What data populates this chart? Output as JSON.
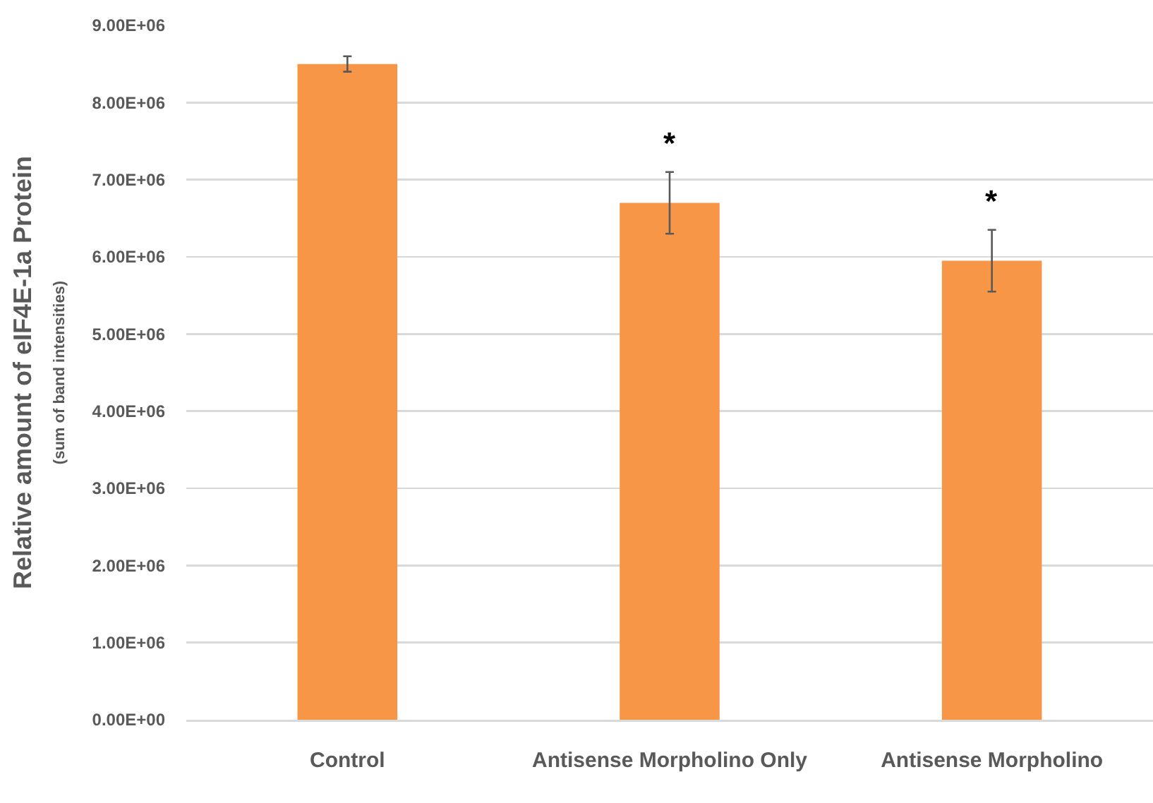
{
  "chart_data": {
    "type": "bar",
    "ylabel": "Relative amount of eIF4E-1a Protein\n(sum of band intensities)",
    "categories": [
      "Control",
      "Antisense Morpholino Only",
      "Antisense Morpholino"
    ],
    "values": [
      8500000,
      6700000,
      5950000
    ],
    "errors": [
      100000,
      400000,
      400000
    ],
    "color": "#f79646",
    "ylim": [
      0,
      9000000
    ],
    "yticks": [
      {
        "value": 0,
        "label": "0.00E+00"
      },
      {
        "value": 1000000,
        "label": "1.00E+06"
      },
      {
        "value": 2000000,
        "label": "2.00E+06"
      },
      {
        "value": 3000000,
        "label": "3.00E+06"
      },
      {
        "value": 4000000,
        "label": "4.00E+06"
      },
      {
        "value": 5000000,
        "label": "5.00E+06"
      },
      {
        "value": 6000000,
        "label": "6.00E+06"
      },
      {
        "value": 7000000,
        "label": "7.00E+06"
      },
      {
        "value": 8000000,
        "label": "8.00E+06"
      },
      {
        "value": 9000000,
        "label": "9.00E+06"
      }
    ],
    "grid": "y",
    "annotations": [
      {
        "text": "*",
        "x": "Antisense Morpholino Only",
        "y": 6700000
      },
      {
        "text": "*",
        "x": "Antisense Morpholino",
        "y": 5950000
      }
    ]
  }
}
